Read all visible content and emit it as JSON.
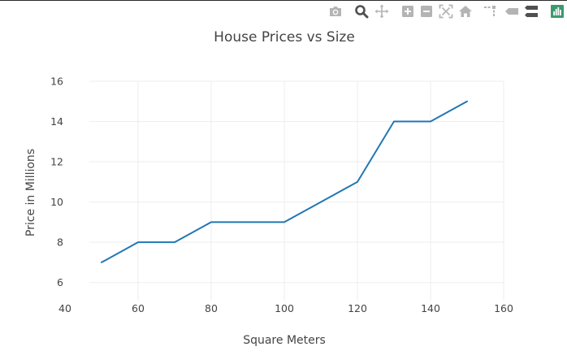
{
  "modebar": {
    "buttons": [
      {
        "icon": "camera-icon"
      },
      {
        "icon": "zoom-icon",
        "active": true
      },
      {
        "icon": "pan-icon"
      },
      {
        "icon": "zoom-in-icon"
      },
      {
        "icon": "zoom-out-icon"
      },
      {
        "icon": "autoscale-icon"
      },
      {
        "icon": "home-icon"
      },
      {
        "icon": "spike-lines-icon"
      },
      {
        "icon": "hover-closest-icon"
      },
      {
        "icon": "hover-compare-icon"
      },
      {
        "icon": "chart-studio-logo-icon"
      }
    ],
    "icon_color": "#b4b4b4",
    "active_color": "#505050",
    "logo_color": "#3d9970"
  },
  "chart_data": {
    "type": "line",
    "title": "House Prices vs Size",
    "xlabel": "Square Meters",
    "ylabel": "Price in Millions",
    "xlim": [
      40,
      160
    ],
    "ylim": [
      5.1,
      16
    ],
    "x_ticks": [
      40,
      60,
      80,
      100,
      120,
      140,
      160
    ],
    "y_ticks": [
      6,
      8,
      10,
      12,
      14,
      16
    ],
    "grid": true,
    "series": [
      {
        "x": [
          50,
          60,
          70,
          80,
          90,
          100,
          110,
          120,
          130,
          140,
          150
        ],
        "y": [
          7,
          8,
          8,
          9,
          9,
          9,
          10,
          11,
          14,
          14,
          15
        ],
        "color": "#1f77b4"
      }
    ]
  }
}
